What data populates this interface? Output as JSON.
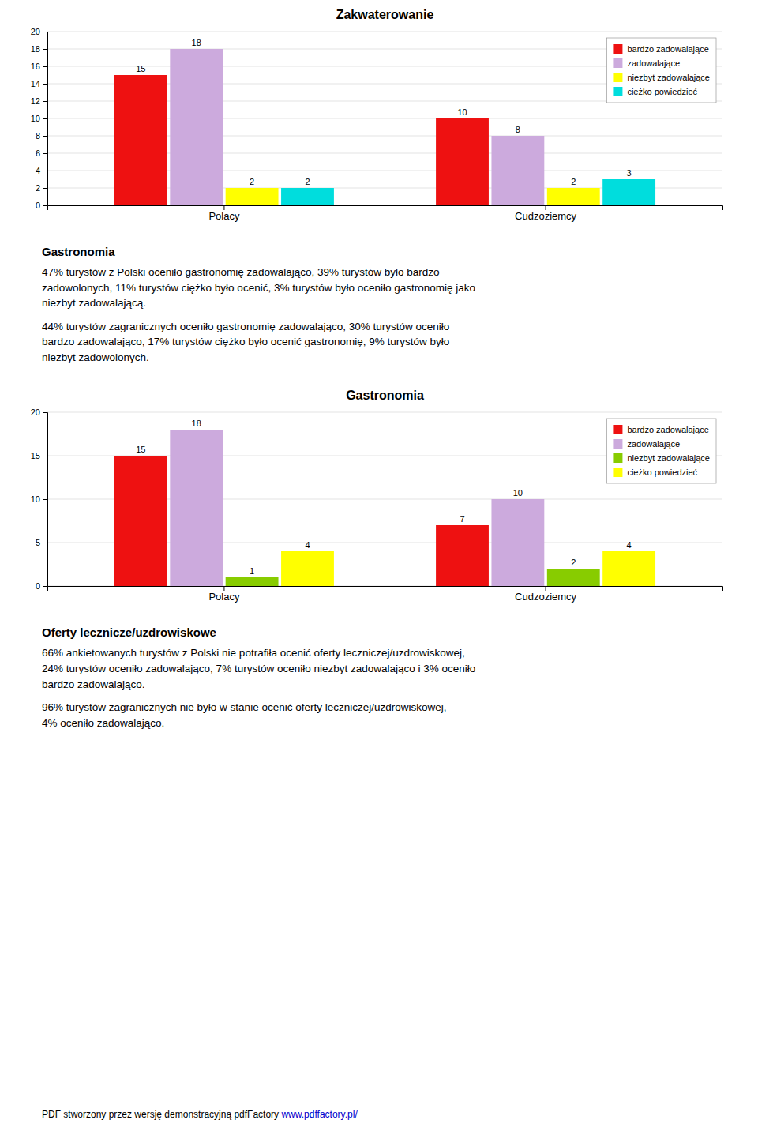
{
  "chart_data": [
    {
      "type": "bar",
      "title": "Zakwaterowanie",
      "categories": [
        "Polacy",
        "Cudzoziemcy"
      ],
      "series": [
        {
          "name": "bardzo zadowalające",
          "color": "#EE1111",
          "values": [
            15,
            10
          ]
        },
        {
          "name": "zadowalające",
          "color": "#CCAADD",
          "values": [
            18,
            8
          ]
        },
        {
          "name": "niezbyt zadowalające",
          "color": "#FFFF00",
          "values": [
            2,
            2
          ]
        },
        {
          "name": "cieżko powiedzieć",
          "color": "#00DDDD",
          "values": [
            2,
            3
          ]
        }
      ],
      "ylim": [
        0,
        20
      ],
      "yticks": [
        0,
        2,
        4,
        6,
        8,
        10,
        12,
        14,
        16,
        18,
        20
      ],
      "grid": true,
      "legend": "upper right",
      "data_labels": true
    },
    {
      "type": "bar",
      "title": "Gastronomia",
      "categories": [
        "Polacy",
        "Cudzoziemcy"
      ],
      "series": [
        {
          "name": "bardzo zadowalające",
          "color": "#EE1111",
          "values": [
            15,
            7
          ]
        },
        {
          "name": "zadowalające",
          "color": "#CCAADD",
          "values": [
            18,
            10
          ]
        },
        {
          "name": "niezbyt zadowalające",
          "color": "#88CC00",
          "values": [
            1,
            2
          ]
        },
        {
          "name": "cieżko powiedzieć",
          "color": "#FFFF00",
          "values": [
            4,
            4
          ]
        }
      ],
      "ylim": [
        0,
        20
      ],
      "yticks": [
        0,
        5,
        10,
        15,
        20
      ],
      "grid": true,
      "legend": "upper right",
      "data_labels": true
    }
  ],
  "text_blocks": [
    {
      "heading": "Gastronomia",
      "paragraphs": [
        "47% turystów z Polski oceniło gastronomię zadowalająco, 39% turystów było bardzo\nzadowolonych, 11% turystów ciężko było ocenić, 3% turystów było oceniło gastronomię jako\nniezbyt zadowalającą.",
        "44% turystów zagranicznych oceniło gastronomię zadowalająco, 30% turystów oceniło\nbardzo zadowalająco, 17% turystów ciężko było ocenić gastronomię, 9% turystów było\nniezbyt zadowolonych."
      ]
    },
    {
      "heading": "Oferty lecznicze/uzdrowiskowe",
      "paragraphs": [
        "66% ankietowanych turystów z Polski nie potrafiła ocenić oferty leczniczej/uzdrowiskowej,\n24% turystów oceniło zadowalająco, 7% turystów oceniło niezbyt zadowalająco i 3% oceniło\nbardzo zadowalająco.",
        "96% turystów zagranicznych nie było w stanie ocenić oferty leczniczej/uzdrowiskowej,\n4% oceniło zadowalająco."
      ]
    }
  ],
  "footer": {
    "text": "PDF stworzony przez wersję demonstracyjną pdfFactory ",
    "link": "www.pdffactory.pl/"
  }
}
